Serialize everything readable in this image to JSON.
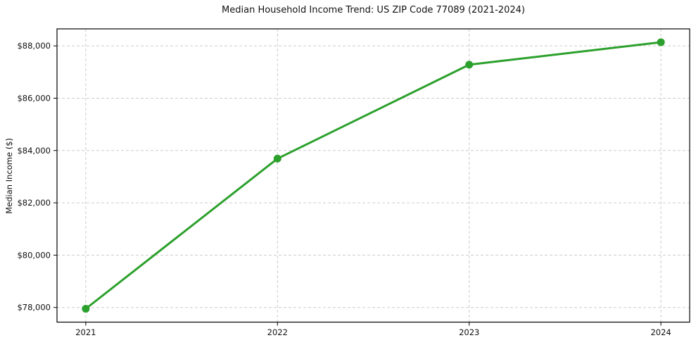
{
  "chart_data": {
    "type": "line",
    "title": "Median Household Income Trend: US ZIP Code 77089 (2021-2024)",
    "xlabel": "",
    "ylabel": "Median Income ($)",
    "x": [
      2021,
      2022,
      2023,
      2024
    ],
    "x_tick_labels": [
      "2021",
      "2022",
      "2023",
      "2024"
    ],
    "series": [
      {
        "name": "Median Household Income",
        "values": [
          77950,
          83690,
          87280,
          88140
        ]
      }
    ],
    "y_ticks": [
      78000,
      80000,
      82000,
      84000,
      86000,
      88000
    ],
    "y_tick_labels": [
      "$78,000",
      "$80,000",
      "$82,000",
      "$84,000",
      "$86,000",
      "$88,000"
    ],
    "xlim": [
      2020.85,
      2024.15
    ],
    "ylim": [
      77440,
      88650
    ],
    "grid": true,
    "legend": "none",
    "line_color": "#2ca02c",
    "marker_color": "#2ca02c",
    "grid_color": "#cccccc",
    "axis_color": "#000000",
    "background_color": "#ffffff"
  }
}
